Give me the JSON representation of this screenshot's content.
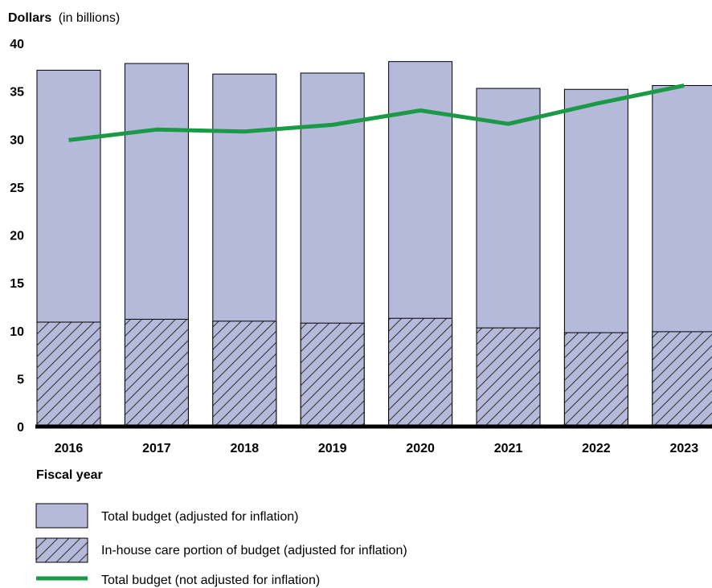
{
  "chart_data": {
    "type": "bar",
    "ylabel_bold": "Dollars",
    "ylabel_rest": "(in billions)",
    "xlabel": "Fiscal year",
    "ylim": [
      0,
      40
    ],
    "yticks": [
      0,
      5,
      10,
      15,
      20,
      25,
      30,
      35,
      40
    ],
    "categories": [
      "2016",
      "2017",
      "2018",
      "2019",
      "2020",
      "2021",
      "2022",
      "2023"
    ],
    "series": [
      {
        "name": "Total budget (adjusted for inflation)",
        "kind": "bar",
        "values": [
          37.2,
          37.9,
          36.8,
          36.9,
          38.1,
          35.3,
          35.2,
          35.6
        ],
        "color": "#b5b9da"
      },
      {
        "name": "In-house care portion of budget (adjusted for inflation)",
        "kind": "bar-hatched",
        "values": [
          10.9,
          11.2,
          11.0,
          10.8,
          11.3,
          10.3,
          9.8,
          9.9
        ],
        "color": "#b5b9da"
      },
      {
        "name": "Total budget (not adjusted for inflation)",
        "kind": "line",
        "values": [
          29.9,
          31.0,
          30.8,
          31.5,
          33.0,
          31.6,
          33.7,
          35.6
        ],
        "color": "#1a9a47"
      }
    ],
    "grid": false,
    "legend_position": "bottom"
  }
}
